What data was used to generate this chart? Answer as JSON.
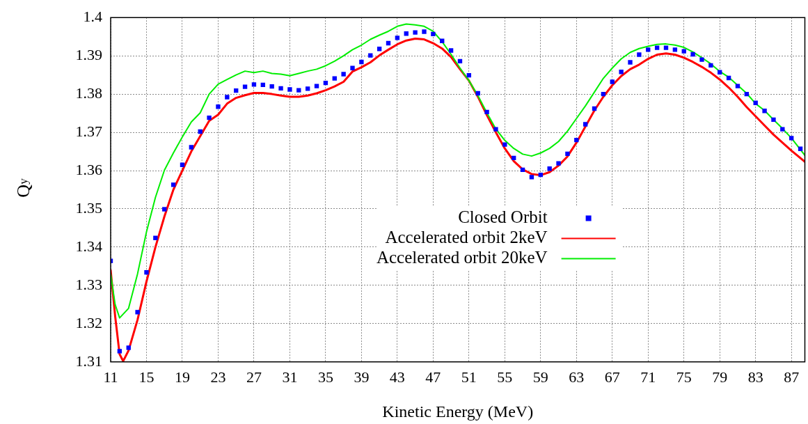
{
  "chart_data": {
    "type": "line",
    "xlabel": "Kinetic Energy (MeV)",
    "ylabel": "Q$_{y}$",
    "xlim": [
      11,
      88.5
    ],
    "xticks": [
      11,
      15,
      19,
      23,
      27,
      31,
      35,
      39,
      43,
      47,
      51,
      55,
      59,
      63,
      67,
      71,
      75,
      79,
      83,
      87
    ],
    "ylim": [
      1.31,
      1.4
    ],
    "yticks": [
      1.31,
      1.32,
      1.33,
      1.34,
      1.35,
      1.36,
      1.37,
      1.38,
      1.39,
      1.4
    ],
    "grid": true,
    "legend": "center",
    "series": [
      {
        "name": "Closed Orbit",
        "type": "scatter",
        "marker": "square",
        "color": "#0000ff",
        "x": [
          11,
          12,
          13,
          14,
          15,
          16,
          17,
          18,
          19,
          20,
          21,
          22,
          23,
          24,
          25,
          26,
          27,
          28,
          29,
          30,
          31,
          32,
          33,
          34,
          35,
          36,
          37,
          38,
          39,
          40,
          41,
          42,
          43,
          44,
          45,
          46,
          47,
          48,
          49,
          50,
          51,
          52,
          53,
          54,
          55,
          56,
          57,
          58,
          59,
          60,
          61,
          62,
          63,
          64,
          65,
          66,
          67,
          68,
          69,
          70,
          71,
          72,
          73,
          74,
          75,
          76,
          77,
          78,
          79,
          80,
          81,
          82,
          83,
          84,
          85,
          86,
          87,
          88
        ],
        "values": [
          1.3364,
          1.3128,
          1.3137,
          1.323,
          1.3334,
          1.3424,
          1.3499,
          1.3563,
          1.3615,
          1.3661,
          1.3702,
          1.3738,
          1.3767,
          1.3792,
          1.3809,
          1.3819,
          1.3825,
          1.3824,
          1.382,
          1.3815,
          1.3812,
          1.381,
          1.3814,
          1.3821,
          1.3829,
          1.3841,
          1.3852,
          1.3868,
          1.3884,
          1.3901,
          1.3918,
          1.3933,
          1.3947,
          1.3958,
          1.3961,
          1.3963,
          1.3957,
          1.3939,
          1.3914,
          1.3886,
          1.3849,
          1.3802,
          1.3753,
          1.3708,
          1.3668,
          1.3633,
          1.3602,
          1.3583,
          1.3589,
          1.3605,
          1.3619,
          1.3644,
          1.368,
          1.3721,
          1.3762,
          1.38,
          1.3832,
          1.3858,
          1.3883,
          1.3903,
          1.3916,
          1.3921,
          1.3921,
          1.3916,
          1.3912,
          1.3904,
          1.389,
          1.3875,
          1.3857,
          1.3842,
          1.3821,
          1.38,
          1.3777,
          1.3756,
          1.3733,
          1.3708,
          1.3685,
          1.3657
        ]
      },
      {
        "name": "Accelerated orbit 2keV",
        "type": "line",
        "color": "#ff0000",
        "x": [
          11,
          11.5,
          12,
          12.4,
          13,
          14,
          15,
          16,
          17,
          18,
          19,
          20,
          21,
          22,
          23,
          24,
          25,
          26,
          27,
          28,
          29,
          30,
          31,
          32,
          33,
          34,
          35,
          36,
          37,
          38,
          39,
          40,
          41,
          42,
          43,
          44,
          45,
          46,
          47,
          48,
          49,
          50,
          51,
          52,
          53,
          54,
          55,
          56,
          57,
          58,
          59,
          60,
          61,
          62,
          63,
          64,
          65,
          66,
          67,
          68,
          69,
          70,
          71,
          72,
          73,
          74,
          75,
          76,
          77,
          78,
          79,
          80,
          81,
          82,
          83,
          84,
          85,
          86,
          87,
          88.5
        ],
        "values": [
          1.334,
          1.322,
          1.312,
          1.3102,
          1.313,
          1.321,
          1.331,
          1.34,
          1.348,
          1.355,
          1.36,
          1.365,
          1.369,
          1.373,
          1.3746,
          1.3775,
          1.379,
          1.3797,
          1.3803,
          1.3803,
          1.38,
          1.3796,
          1.3793,
          1.3793,
          1.3796,
          1.3802,
          1.381,
          1.382,
          1.3832,
          1.3859,
          1.387,
          1.3883,
          1.3901,
          1.3916,
          1.393,
          1.394,
          1.3945,
          1.3943,
          1.3933,
          1.3919,
          1.3897,
          1.3865,
          1.3835,
          1.3793,
          1.3745,
          1.37,
          1.3658,
          1.3625,
          1.3603,
          1.3591,
          1.3588,
          1.3596,
          1.3613,
          1.3637,
          1.3673,
          1.3715,
          1.3757,
          1.3793,
          1.3823,
          1.3847,
          1.3865,
          1.3877,
          1.3892,
          1.3903,
          1.3906,
          1.3903,
          1.3895,
          1.3884,
          1.3871,
          1.3856,
          1.3838,
          1.3817,
          1.3793,
          1.3766,
          1.3742,
          1.3718,
          1.3694,
          1.3673,
          1.3652,
          1.3623
        ]
      },
      {
        "name": "Accelerated orbit 20keV",
        "type": "line",
        "color": "#00ee00",
        "x": [
          11,
          11.5,
          12,
          13,
          14,
          15,
          16,
          17,
          18,
          19,
          20,
          21,
          22,
          23,
          24,
          25,
          26,
          27,
          28,
          29,
          30,
          31,
          32,
          33,
          34,
          35,
          36,
          37,
          38,
          39,
          40,
          41,
          42,
          43,
          44,
          45,
          46,
          47,
          48,
          49,
          50,
          51,
          52,
          53,
          54,
          55,
          56,
          57,
          58,
          59,
          60,
          61,
          62,
          63,
          64,
          65,
          66,
          67,
          68,
          69,
          70,
          71,
          72,
          73,
          74,
          75,
          76,
          77,
          78,
          79,
          80,
          81,
          82,
          83,
          84,
          85,
          86,
          87,
          88.5
        ],
        "values": [
          1.333,
          1.325,
          1.3215,
          1.324,
          1.333,
          1.344,
          1.353,
          1.3601,
          1.3646,
          1.3688,
          1.3727,
          1.3751,
          1.38,
          1.3826,
          1.3838,
          1.385,
          1.386,
          1.3856,
          1.386,
          1.3854,
          1.3852,
          1.3848,
          1.3854,
          1.386,
          1.3865,
          1.3874,
          1.3886,
          1.39,
          1.3916,
          1.3928,
          1.3943,
          1.3954,
          1.3964,
          1.3977,
          1.3983,
          1.3981,
          1.3977,
          1.3964,
          1.3937,
          1.3904,
          1.3868,
          1.3835,
          1.3796,
          1.3751,
          1.3709,
          1.3679,
          1.3658,
          1.3643,
          1.3638,
          1.3646,
          1.3658,
          1.3676,
          1.3703,
          1.3736,
          1.3769,
          1.3805,
          1.3841,
          1.3868,
          1.3892,
          1.3909,
          1.3919,
          1.3925,
          1.393,
          1.3931,
          1.3928,
          1.3922,
          1.391,
          1.3895,
          1.3879,
          1.3859,
          1.3844,
          1.3823,
          1.3802,
          1.3775,
          1.3757,
          1.3733,
          1.371,
          1.3685,
          1.364
        ]
      }
    ]
  }
}
